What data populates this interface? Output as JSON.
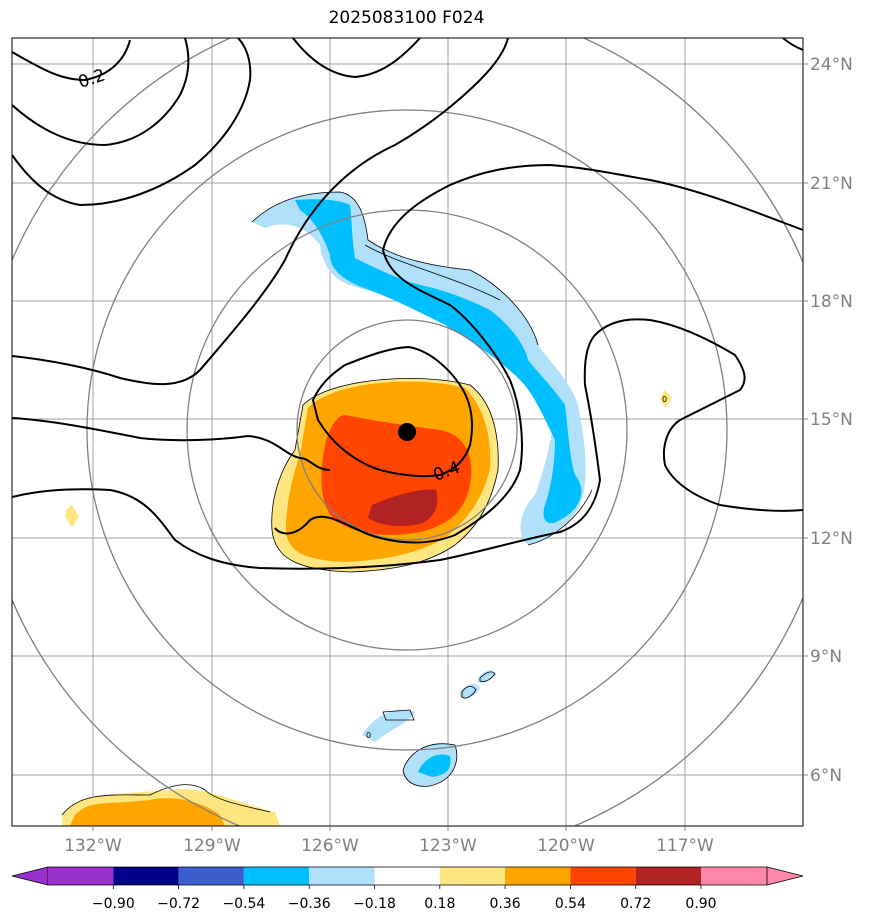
{
  "title": "2025083100 F024",
  "map": {
    "lat_ticks": [
      "24°N",
      "21°N",
      "18°N",
      "15°N",
      "12°N",
      "9°N",
      "6°N"
    ],
    "lon_ticks": [
      "132°W",
      "129°W",
      "126°W",
      "123°W",
      "120°W",
      "117°W"
    ],
    "contour_labels": [
      "0.2",
      "0.4"
    ],
    "storm_center": "123.9°W 14.7°N",
    "colors": {
      "range_rings": "#808080",
      "gridlines": "#a0a0a0",
      "contours": "#000000",
      "shade_pos_weak": "#ffe680",
      "shade_pos_mid": "#ffa500",
      "shade_pos_strong": "#ff4500",
      "shade_pos_max": "#b22222",
      "shade_neg_weak": "#b0e0fa",
      "shade_neg_mid": "#00bfff"
    }
  },
  "colorbar": {
    "labels": [
      "−0.90",
      "−0.72",
      "−0.54",
      "−0.36",
      "−0.18",
      "0.18",
      "0.36",
      "0.54",
      "0.72",
      "0.90"
    ],
    "colors": [
      "#9932cc",
      "#00008b",
      "#3a5fcd",
      "#00bfff",
      "#b0e0fa",
      "#ffffff",
      "#ffe680",
      "#ffa500",
      "#ff4500",
      "#b22222",
      "#ff88aa"
    ]
  }
}
